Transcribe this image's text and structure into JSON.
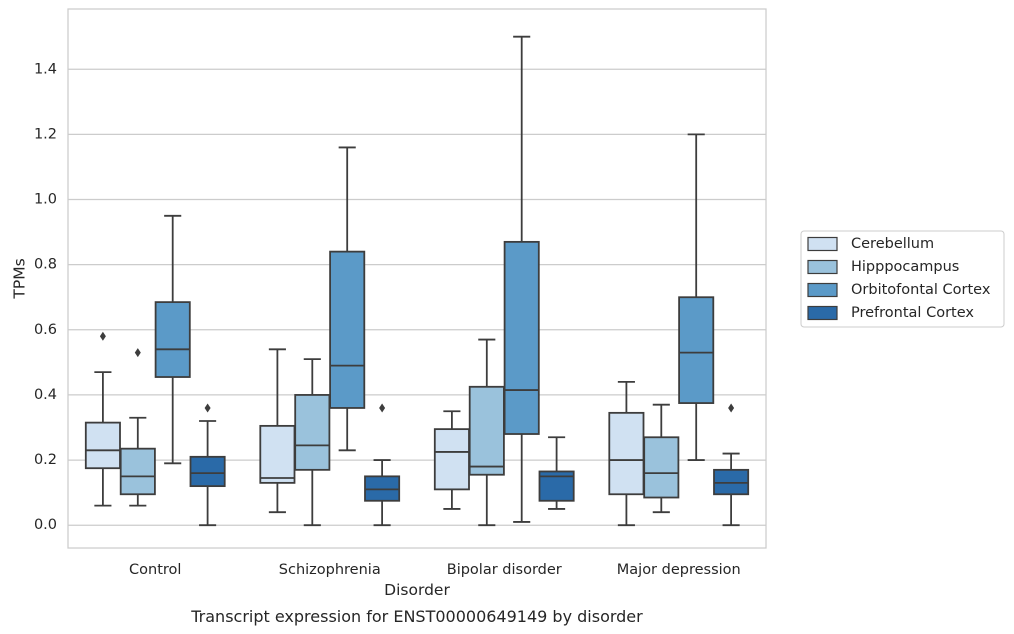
{
  "chart_data": {
    "type": "box",
    "caption": "Transcript expression for ENST00000649149 by disorder",
    "xlabel": "Disorder",
    "ylabel": "TPMs",
    "ylim": [
      -0.07,
      1.585
    ],
    "yticks": [
      0.0,
      0.2,
      0.4,
      0.6,
      0.8,
      1.0,
      1.2,
      1.4
    ],
    "ytick_labels": [
      "0.0",
      "0.2",
      "0.4",
      "0.6",
      "0.8",
      "1.0",
      "1.2",
      "1.4"
    ],
    "grid": "horizontal",
    "legend_position": "right",
    "categories": [
      "Control",
      "Schizophrenia",
      "Bipolar disorder",
      "Major depression"
    ],
    "series": [
      {
        "name": "Cerebellum",
        "color": "#d0e1f2",
        "boxes": [
          {
            "whisker_low": 0.06,
            "q1": 0.175,
            "median": 0.23,
            "q3": 0.315,
            "whisker_high": 0.47,
            "outliers": [
              0.58
            ]
          },
          {
            "whisker_low": 0.04,
            "q1": 0.13,
            "median": 0.145,
            "q3": 0.305,
            "whisker_high": 0.54,
            "outliers": []
          },
          {
            "whisker_low": 0.05,
            "q1": 0.11,
            "median": 0.225,
            "q3": 0.295,
            "whisker_high": 0.35,
            "outliers": []
          },
          {
            "whisker_low": 0.0,
            "q1": 0.095,
            "median": 0.2,
            "q3": 0.345,
            "whisker_high": 0.44,
            "outliers": []
          }
        ]
      },
      {
        "name": "Hipppocampus",
        "color": "#9ac2dc",
        "boxes": [
          {
            "whisker_low": 0.06,
            "q1": 0.095,
            "median": 0.15,
            "q3": 0.235,
            "whisker_high": 0.33,
            "outliers": [
              0.53
            ]
          },
          {
            "whisker_low": 0.0,
            "q1": 0.17,
            "median": 0.245,
            "q3": 0.4,
            "whisker_high": 0.51,
            "outliers": []
          },
          {
            "whisker_low": 0.0,
            "q1": 0.155,
            "median": 0.18,
            "q3": 0.425,
            "whisker_high": 0.57,
            "outliers": []
          },
          {
            "whisker_low": 0.04,
            "q1": 0.085,
            "median": 0.16,
            "q3": 0.27,
            "whisker_high": 0.37,
            "outliers": []
          }
        ]
      },
      {
        "name": "Orbitofontal Cortex",
        "color": "#5b9ac8",
        "boxes": [
          {
            "whisker_low": 0.19,
            "q1": 0.455,
            "median": 0.54,
            "q3": 0.685,
            "whisker_high": 0.95,
            "outliers": []
          },
          {
            "whisker_low": 0.23,
            "q1": 0.36,
            "median": 0.49,
            "q3": 0.84,
            "whisker_high": 1.16,
            "outliers": []
          },
          {
            "whisker_low": 0.01,
            "q1": 0.28,
            "median": 0.415,
            "q3": 0.87,
            "whisker_high": 1.5,
            "outliers": []
          },
          {
            "whisker_low": 0.2,
            "q1": 0.375,
            "median": 0.53,
            "q3": 0.7,
            "whisker_high": 1.2,
            "outliers": []
          }
        ]
      },
      {
        "name": "Prefrontal Cortex",
        "color": "#2a6aa8",
        "boxes": [
          {
            "whisker_low": 0.0,
            "q1": 0.12,
            "median": 0.16,
            "q3": 0.21,
            "whisker_high": 0.32,
            "outliers": [
              0.36
            ]
          },
          {
            "whisker_low": 0.0,
            "q1": 0.075,
            "median": 0.11,
            "q3": 0.15,
            "whisker_high": 0.2,
            "outliers": [
              0.36
            ]
          },
          {
            "whisker_low": 0.05,
            "q1": 0.075,
            "median": 0.15,
            "q3": 0.165,
            "whisker_high": 0.27,
            "outliers": []
          },
          {
            "whisker_low": 0.0,
            "q1": 0.095,
            "median": 0.13,
            "q3": 0.17,
            "whisker_high": 0.22,
            "outliers": [
              0.36
            ]
          }
        ]
      }
    ]
  }
}
